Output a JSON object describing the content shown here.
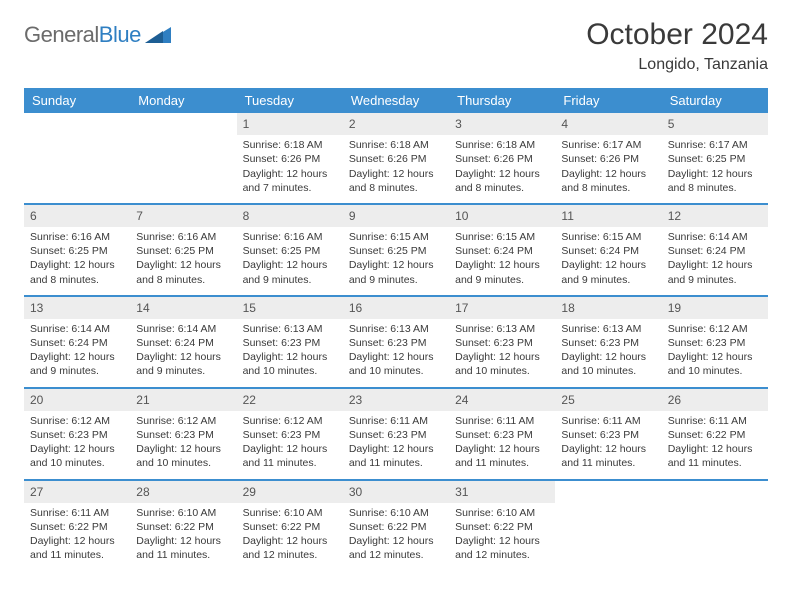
{
  "brand": {
    "word1": "General",
    "word2": "Blue"
  },
  "title": "October 2024",
  "location": "Longido, Tanzania",
  "accent_color": "#3c8ecf",
  "daynum_bg": "#ededed",
  "weekdays": [
    "Sunday",
    "Monday",
    "Tuesday",
    "Wednesday",
    "Thursday",
    "Friday",
    "Saturday"
  ],
  "weeks": [
    [
      null,
      null,
      {
        "n": "1",
        "sr": "Sunrise: 6:18 AM",
        "ss": "Sunset: 6:26 PM",
        "d1": "Daylight: 12 hours",
        "d2": "and 7 minutes."
      },
      {
        "n": "2",
        "sr": "Sunrise: 6:18 AM",
        "ss": "Sunset: 6:26 PM",
        "d1": "Daylight: 12 hours",
        "d2": "and 8 minutes."
      },
      {
        "n": "3",
        "sr": "Sunrise: 6:18 AM",
        "ss": "Sunset: 6:26 PM",
        "d1": "Daylight: 12 hours",
        "d2": "and 8 minutes."
      },
      {
        "n": "4",
        "sr": "Sunrise: 6:17 AM",
        "ss": "Sunset: 6:26 PM",
        "d1": "Daylight: 12 hours",
        "d2": "and 8 minutes."
      },
      {
        "n": "5",
        "sr": "Sunrise: 6:17 AM",
        "ss": "Sunset: 6:25 PM",
        "d1": "Daylight: 12 hours",
        "d2": "and 8 minutes."
      }
    ],
    [
      {
        "n": "6",
        "sr": "Sunrise: 6:16 AM",
        "ss": "Sunset: 6:25 PM",
        "d1": "Daylight: 12 hours",
        "d2": "and 8 minutes."
      },
      {
        "n": "7",
        "sr": "Sunrise: 6:16 AM",
        "ss": "Sunset: 6:25 PM",
        "d1": "Daylight: 12 hours",
        "d2": "and 8 minutes."
      },
      {
        "n": "8",
        "sr": "Sunrise: 6:16 AM",
        "ss": "Sunset: 6:25 PM",
        "d1": "Daylight: 12 hours",
        "d2": "and 9 minutes."
      },
      {
        "n": "9",
        "sr": "Sunrise: 6:15 AM",
        "ss": "Sunset: 6:25 PM",
        "d1": "Daylight: 12 hours",
        "d2": "and 9 minutes."
      },
      {
        "n": "10",
        "sr": "Sunrise: 6:15 AM",
        "ss": "Sunset: 6:24 PM",
        "d1": "Daylight: 12 hours",
        "d2": "and 9 minutes."
      },
      {
        "n": "11",
        "sr": "Sunrise: 6:15 AM",
        "ss": "Sunset: 6:24 PM",
        "d1": "Daylight: 12 hours",
        "d2": "and 9 minutes."
      },
      {
        "n": "12",
        "sr": "Sunrise: 6:14 AM",
        "ss": "Sunset: 6:24 PM",
        "d1": "Daylight: 12 hours",
        "d2": "and 9 minutes."
      }
    ],
    [
      {
        "n": "13",
        "sr": "Sunrise: 6:14 AM",
        "ss": "Sunset: 6:24 PM",
        "d1": "Daylight: 12 hours",
        "d2": "and 9 minutes."
      },
      {
        "n": "14",
        "sr": "Sunrise: 6:14 AM",
        "ss": "Sunset: 6:24 PM",
        "d1": "Daylight: 12 hours",
        "d2": "and 9 minutes."
      },
      {
        "n": "15",
        "sr": "Sunrise: 6:13 AM",
        "ss": "Sunset: 6:23 PM",
        "d1": "Daylight: 12 hours",
        "d2": "and 10 minutes."
      },
      {
        "n": "16",
        "sr": "Sunrise: 6:13 AM",
        "ss": "Sunset: 6:23 PM",
        "d1": "Daylight: 12 hours",
        "d2": "and 10 minutes."
      },
      {
        "n": "17",
        "sr": "Sunrise: 6:13 AM",
        "ss": "Sunset: 6:23 PM",
        "d1": "Daylight: 12 hours",
        "d2": "and 10 minutes."
      },
      {
        "n": "18",
        "sr": "Sunrise: 6:13 AM",
        "ss": "Sunset: 6:23 PM",
        "d1": "Daylight: 12 hours",
        "d2": "and 10 minutes."
      },
      {
        "n": "19",
        "sr": "Sunrise: 6:12 AM",
        "ss": "Sunset: 6:23 PM",
        "d1": "Daylight: 12 hours",
        "d2": "and 10 minutes."
      }
    ],
    [
      {
        "n": "20",
        "sr": "Sunrise: 6:12 AM",
        "ss": "Sunset: 6:23 PM",
        "d1": "Daylight: 12 hours",
        "d2": "and 10 minutes."
      },
      {
        "n": "21",
        "sr": "Sunrise: 6:12 AM",
        "ss": "Sunset: 6:23 PM",
        "d1": "Daylight: 12 hours",
        "d2": "and 10 minutes."
      },
      {
        "n": "22",
        "sr": "Sunrise: 6:12 AM",
        "ss": "Sunset: 6:23 PM",
        "d1": "Daylight: 12 hours",
        "d2": "and 11 minutes."
      },
      {
        "n": "23",
        "sr": "Sunrise: 6:11 AM",
        "ss": "Sunset: 6:23 PM",
        "d1": "Daylight: 12 hours",
        "d2": "and 11 minutes."
      },
      {
        "n": "24",
        "sr": "Sunrise: 6:11 AM",
        "ss": "Sunset: 6:23 PM",
        "d1": "Daylight: 12 hours",
        "d2": "and 11 minutes."
      },
      {
        "n": "25",
        "sr": "Sunrise: 6:11 AM",
        "ss": "Sunset: 6:23 PM",
        "d1": "Daylight: 12 hours",
        "d2": "and 11 minutes."
      },
      {
        "n": "26",
        "sr": "Sunrise: 6:11 AM",
        "ss": "Sunset: 6:22 PM",
        "d1": "Daylight: 12 hours",
        "d2": "and 11 minutes."
      }
    ],
    [
      {
        "n": "27",
        "sr": "Sunrise: 6:11 AM",
        "ss": "Sunset: 6:22 PM",
        "d1": "Daylight: 12 hours",
        "d2": "and 11 minutes."
      },
      {
        "n": "28",
        "sr": "Sunrise: 6:10 AM",
        "ss": "Sunset: 6:22 PM",
        "d1": "Daylight: 12 hours",
        "d2": "and 11 minutes."
      },
      {
        "n": "29",
        "sr": "Sunrise: 6:10 AM",
        "ss": "Sunset: 6:22 PM",
        "d1": "Daylight: 12 hours",
        "d2": "and 12 minutes."
      },
      {
        "n": "30",
        "sr": "Sunrise: 6:10 AM",
        "ss": "Sunset: 6:22 PM",
        "d1": "Daylight: 12 hours",
        "d2": "and 12 minutes."
      },
      {
        "n": "31",
        "sr": "Sunrise: 6:10 AM",
        "ss": "Sunset: 6:22 PM",
        "d1": "Daylight: 12 hours",
        "d2": "and 12 minutes."
      },
      null,
      null
    ]
  ]
}
